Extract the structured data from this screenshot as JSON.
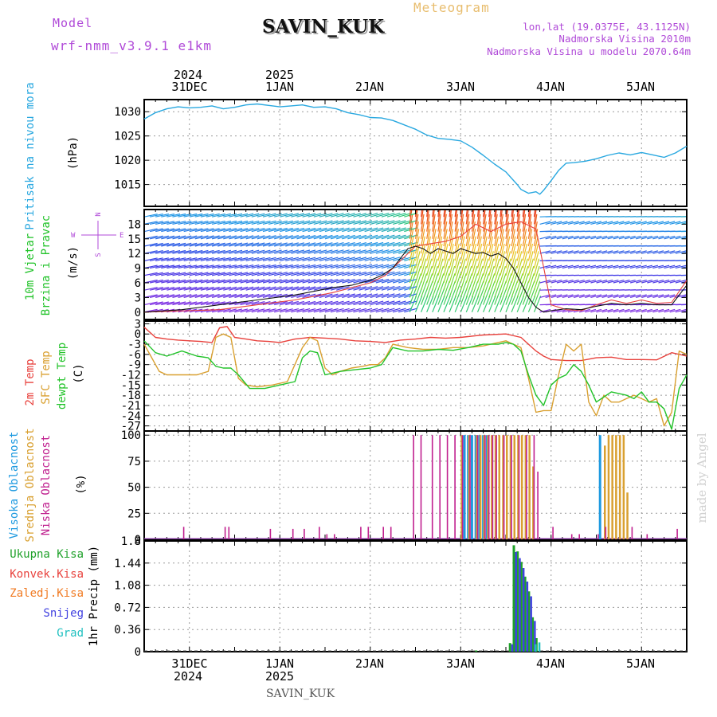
{
  "header": {
    "model_label": "Model",
    "model_name": "wrf-nmm_v3.9.1 e1km",
    "station": "SAVIN_KUK",
    "meteogram_label": "Meteogram",
    "coords": "lon,lat (19.0375E, 43.1125N)",
    "elevation": "Nadmorska Visina 2010m",
    "model_elevation": "Nadmorska Visina u modelu 2070.64m",
    "footer_station": "SAVIN_KUK",
    "watermark": "made by Angel"
  },
  "colors": {
    "pressure": "#29a8e0",
    "temp2m": "#e8413c",
    "sfc_temp": "#d9a030",
    "dewpoint": "#22c32a",
    "cloud_high": "#1e9ae0",
    "cloud_mid": "#d9a030",
    "cloud_low": "#c0208f",
    "precip_total": "#1fa12a",
    "precip_conv": "#e8413c",
    "precip_frozen": "#f07a22",
    "snow": "#4040e0",
    "hail": "#20c0c0",
    "label_purple": "#b04ad8"
  },
  "chart_data": [
    {
      "id": "pressure",
      "type": "line",
      "label": "Pritisak na nivou mora",
      "ylabel": "(hPa)",
      "ylim": [
        1010.5,
        1032.5
      ],
      "yticks": [
        "1015",
        "1020",
        "1025",
        "1030"
      ],
      "x_unit": "hours since 30 Dec 2024 12:00 UTC",
      "x_range": [
        0,
        144
      ],
      "x_ticks": [
        {
          "h": 12,
          "top_year": "2024",
          "top_day": "31DEC",
          "bottom_day": "31DEC",
          "bottom_year": "2024"
        },
        {
          "h": 36,
          "top_year": "2025",
          "top_day": "1JAN",
          "bottom_day": "1JAN",
          "bottom_year": "2025"
        },
        {
          "h": 60,
          "top_day": "2JAN",
          "bottom_day": "2JAN"
        },
        {
          "h": 84,
          "top_day": "3JAN",
          "bottom_day": "3JAN"
        },
        {
          "h": 108,
          "top_day": "4JAN",
          "bottom_day": "4JAN"
        },
        {
          "h": 132,
          "top_day": "5JAN",
          "bottom_day": "5JAN"
        }
      ],
      "x": [
        0,
        3,
        6,
        9,
        12,
        15,
        18,
        21,
        24,
        27,
        30,
        33,
        36,
        39,
        42,
        45,
        48,
        51,
        54,
        57,
        60,
        63,
        66,
        69,
        72,
        75,
        78,
        81,
        84,
        87,
        90,
        93,
        96,
        99,
        100,
        102,
        104,
        105,
        106,
        108,
        110,
        112,
        114,
        117,
        120,
        123,
        126,
        129,
        132,
        135,
        138,
        141,
        144
      ],
      "values": [
        1028.5,
        1029.8,
        1030.6,
        1031.0,
        1030.8,
        1030.9,
        1031.2,
        1030.6,
        1030.9,
        1031.4,
        1031.6,
        1031.3,
        1031.0,
        1031.2,
        1031.4,
        1030.9,
        1031.0,
        1030.6,
        1029.8,
        1029.4,
        1028.8,
        1028.7,
        1028.2,
        1027.3,
        1026.4,
        1025.2,
        1024.5,
        1024.3,
        1024.0,
        1022.7,
        1021.0,
        1019.2,
        1017.6,
        1015.0,
        1014.0,
        1013.2,
        1013.5,
        1013.0,
        1013.8,
        1015.8,
        1017.9,
        1019.4,
        1019.5,
        1019.8,
        1020.3,
        1021.0,
        1021.5,
        1021.1,
        1021.6,
        1021.1,
        1020.6,
        1021.5,
        1022.9
      ]
    },
    {
      "id": "wind",
      "type": "line",
      "label_line1": "10m Vjetar",
      "label_line2": "Brzina i Pravac",
      "ylabel": "(m/s)",
      "ylim": [
        -1.5,
        21
      ],
      "yticks": [
        "0",
        "3",
        "6",
        "9",
        "12",
        "15",
        "18"
      ],
      "compass": {
        "north": "N",
        "east": "E",
        "west": "W",
        "south": "S"
      },
      "x_range": [
        0,
        144
      ],
      "speed_series": {
        "name": "speed",
        "x": [
          0,
          10,
          20,
          30,
          40,
          50,
          55,
          60,
          63,
          66,
          68,
          70,
          72,
          74,
          76,
          78,
          80,
          82,
          84,
          86,
          88,
          90,
          92,
          94,
          96,
          98,
          100,
          102,
          104,
          106,
          108,
          112,
          116,
          120,
          124,
          128,
          132,
          136,
          140,
          144
        ],
        "values": [
          0,
          0.5,
          1.5,
          2.5,
          3.5,
          5,
          5.5,
          6.5,
          7.5,
          9,
          11,
          13,
          13.5,
          13,
          12,
          13,
          12.5,
          12,
          13,
          12.5,
          12,
          12.2,
          11.5,
          12,
          11,
          9,
          6,
          3,
          1,
          0,
          0.3,
          0.7,
          0.5,
          1.2,
          1.8,
          1.5,
          1.8,
          1.5,
          1.5,
          5.5
        ]
      },
      "gust_series": {
        "name": "gust",
        "x": [
          0,
          20,
          40,
          50,
          60,
          64,
          68,
          72,
          76,
          80,
          84,
          88,
          92,
          96,
          100,
          104,
          108,
          112,
          116,
          120,
          124,
          128,
          132,
          136,
          140,
          144
        ],
        "values": [
          0,
          0.5,
          2.5,
          4,
          6,
          7.5,
          10.5,
          13.5,
          14,
          14.5,
          15.5,
          18,
          16.5,
          18,
          18.5,
          17,
          1.5,
          0.5,
          0.3,
          1.5,
          2.5,
          1.8,
          2.5,
          1.8,
          2,
          6.5
        ]
      }
    },
    {
      "id": "temperature",
      "type": "line",
      "label_2m": "2m Temp",
      "label_sfc": "SFC Temp",
      "label_dew": "dewpt Temp",
      "ylabel": "(C)",
      "ylim": [
        -28.5,
        3.8
      ],
      "yticks": [
        "3",
        "0",
        "-3",
        "-6",
        "-9",
        "-12",
        "-15",
        "-18",
        "-21",
        "-24",
        "-27"
      ],
      "x_range": [
        0,
        144
      ],
      "series": [
        {
          "name": "2m Temp",
          "x": [
            0,
            3,
            6,
            9,
            12,
            15,
            18,
            20,
            22,
            24,
            27,
            30,
            33,
            36,
            40,
            44,
            48,
            52,
            56,
            60,
            64,
            68,
            72,
            76,
            80,
            84,
            88,
            90,
            96,
            100,
            104,
            106,
            108,
            112,
            116,
            120,
            124,
            128,
            132,
            136,
            140,
            144
          ],
          "values": [
            2,
            -1,
            -1.5,
            -1.8,
            -2,
            -2.2,
            -2.5,
            1.8,
            2.2,
            -1,
            -1.5,
            -2,
            -2.2,
            -2.5,
            -1.5,
            -1,
            -1.2,
            -1.5,
            -2,
            -2.2,
            -2.5,
            -1.8,
            -1.5,
            -1,
            -1.2,
            -1,
            -0.5,
            -0.3,
            0,
            -1,
            -5,
            -6.5,
            -7.5,
            -7.8,
            -7.8,
            -7,
            -6.8,
            -7.5,
            -7.5,
            -7.6,
            -5.5,
            -6.5
          ]
        },
        {
          "name": "SFC Temp",
          "x": [
            0,
            2,
            4,
            6,
            10,
            14,
            17,
            19,
            21,
            23,
            25,
            27,
            30,
            34,
            38,
            42,
            44,
            46,
            48,
            50,
            52,
            55,
            58,
            60,
            62,
            64,
            66,
            70,
            74,
            78,
            82,
            86,
            90,
            94,
            96,
            98,
            100,
            102,
            104,
            106,
            108,
            110,
            112,
            114,
            116,
            118,
            120,
            122,
            124,
            126,
            128,
            130,
            132,
            134,
            136,
            138,
            140,
            142,
            144
          ],
          "values": [
            -3,
            -7,
            -11,
            -12,
            -12,
            -12,
            -11,
            -1,
            0,
            -1,
            -13,
            -15,
            -15.5,
            -15,
            -14,
            -4,
            -1,
            -2,
            -10,
            -12,
            -11,
            -10,
            -9.5,
            -9,
            -9,
            -7,
            -3,
            -4,
            -4.5,
            -4.5,
            -4,
            -4,
            -3.5,
            -2.5,
            -2,
            -3,
            -4,
            -13,
            -23,
            -22.5,
            -22.5,
            -12,
            -3,
            -5,
            -3,
            -20,
            -24,
            -18,
            -20,
            -20,
            -19,
            -18,
            -19,
            -20,
            -19,
            -27,
            -23,
            -5,
            -6
          ]
        },
        {
          "name": "dewpt Temp",
          "x": [
            0,
            3,
            6,
            10,
            14,
            17,
            19,
            21,
            23,
            25,
            28,
            32,
            36,
            40,
            42,
            44,
            46,
            48,
            52,
            56,
            60,
            63,
            66,
            70,
            74,
            78,
            82,
            86,
            90,
            94,
            96,
            98,
            100,
            102,
            104,
            106,
            108,
            110,
            112,
            114,
            116,
            118,
            120,
            124,
            128,
            130,
            132,
            134,
            136,
            138,
            140,
            142,
            144
          ],
          "values": [
            -2,
            -5.5,
            -6.5,
            -5,
            -6.5,
            -7,
            -9.5,
            -10,
            -10,
            -12,
            -16,
            -16,
            -15,
            -14,
            -7,
            -5,
            -5.5,
            -12,
            -11,
            -10.5,
            -10,
            -9,
            -4,
            -5,
            -5,
            -4.5,
            -4.8,
            -4,
            -3,
            -3,
            -2.5,
            -3,
            -5,
            -12,
            -18,
            -21,
            -15,
            -13,
            -12,
            -9,
            -11,
            -15,
            -20,
            -17,
            -18,
            -19,
            -17,
            -20,
            -20,
            -22,
            -28,
            -16,
            -12
          ]
        }
      ]
    },
    {
      "id": "cloud",
      "type": "bar",
      "label_high": "Visoka Oblacnost",
      "label_mid": "Srednja Oblacnost",
      "label_low": "Niska Oblacnost",
      "ylabel": "(%)",
      "ylim": [
        0,
        104
      ],
      "yticks": [
        "0",
        "25",
        "50",
        "75",
        "100"
      ],
      "x_range": [
        0,
        144
      ],
      "series": [
        {
          "name": "Visoka Oblacnost",
          "x": [
            85,
            86,
            87,
            88,
            89,
            90,
            91,
            121
          ],
          "values": [
            100,
            100,
            100,
            100,
            100,
            100,
            100,
            100
          ]
        },
        {
          "name": "Srednja Oblacnost",
          "x": [
            84,
            86,
            88,
            89,
            90,
            91,
            92,
            93,
            94,
            95,
            96,
            97,
            98,
            99,
            100,
            101,
            102,
            103,
            122,
            123,
            124,
            125,
            126,
            127,
            128
          ],
          "values": [
            100,
            100,
            100,
            100,
            100,
            100,
            100,
            100,
            100,
            100,
            100,
            100,
            100,
            100,
            100,
            100,
            100,
            70,
            90,
            100,
            100,
            100,
            100,
            100,
            45
          ]
        },
        {
          "name": "Niska Oblacnost",
          "x": [
            10,
            21,
            22,
            33,
            39,
            42,
            46,
            48,
            50,
            57,
            59,
            63,
            65,
            71,
            73,
            76,
            78,
            80,
            82,
            84,
            86,
            88,
            90,
            91,
            92,
            93,
            95,
            97,
            99,
            101,
            103,
            104,
            108,
            113,
            115,
            120,
            122,
            129,
            133,
            141
          ],
          "values": [
            12,
            12,
            12,
            10,
            10,
            10,
            12,
            5,
            5,
            12,
            12,
            12,
            12,
            100,
            100,
            100,
            100,
            100,
            100,
            100,
            100,
            100,
            100,
            100,
            100,
            100,
            100,
            100,
            100,
            100,
            100,
            65,
            12,
            5,
            5,
            5,
            12,
            12,
            5,
            10
          ]
        }
      ]
    },
    {
      "id": "precip",
      "type": "bar",
      "label_total": "Ukupna Kisa",
      "label_conv": "Konvek.Kisa",
      "label_frozen": "Zaledj.Kisa",
      "label_snow": "Snijeg",
      "label_hail": "Grad",
      "ylabel": "1hr Precip (mm)",
      "ylim": [
        0,
        1.8
      ],
      "yticks": [
        "0",
        "0.36",
        "0.72",
        "1.08",
        "1.44",
        "1.8"
      ],
      "x_range": [
        0,
        144
      ],
      "series": [
        {
          "name": "Ukupna Kisa",
          "x": [
            88,
            97,
            98,
            99,
            100,
            101,
            102,
            103,
            104
          ],
          "values": [
            0.02,
            0.14,
            1.73,
            1.63,
            1.46,
            1.22,
            0.98,
            0.56,
            0.22
          ]
        },
        {
          "name": "Snijeg",
          "x": [
            97,
            98,
            99,
            100,
            101,
            102,
            103
          ],
          "values": [
            0.12,
            1.62,
            1.52,
            1.36,
            1.14,
            0.9,
            0.5
          ]
        },
        {
          "name": "Grad",
          "x": [
            103,
            104
          ],
          "values": [
            0.12,
            0.15
          ]
        }
      ]
    }
  ]
}
